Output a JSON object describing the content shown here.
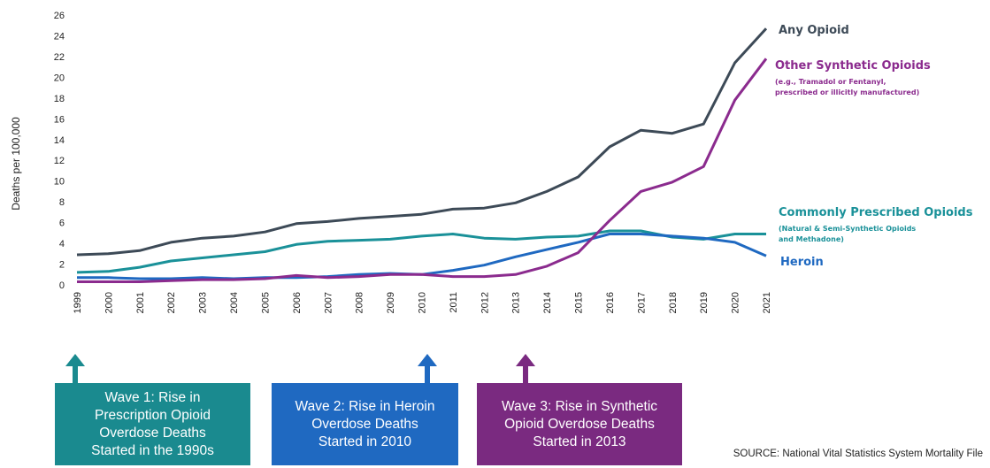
{
  "chart_data": {
    "type": "line",
    "title": "",
    "xlabel": "",
    "ylabel": "Deaths per 100,000",
    "ylim": [
      0,
      26
    ],
    "yticks": [
      0,
      2,
      4,
      6,
      8,
      10,
      12,
      14,
      16,
      18,
      20,
      22,
      24,
      26
    ],
    "x": [
      "1999",
      "2000",
      "2001",
      "2002",
      "2003",
      "2004",
      "2005",
      "2006",
      "2007",
      "2008",
      "2009",
      "2010",
      "2011",
      "2012",
      "2013",
      "2014",
      "2015",
      "2016",
      "2017",
      "2018",
      "2019",
      "2020",
      "2021"
    ],
    "grid": false,
    "series": [
      {
        "name": "Any Opioid",
        "color": "#3d4a57",
        "values": [
          2.9,
          3.0,
          3.3,
          4.1,
          4.5,
          4.7,
          5.1,
          5.9,
          6.1,
          6.4,
          6.6,
          6.8,
          7.3,
          7.4,
          7.9,
          9.0,
          10.4,
          13.3,
          14.9,
          14.6,
          15.5,
          21.4,
          24.7
        ]
      },
      {
        "name": "Other Synthetic Opioids",
        "color": "#8b2b8e",
        "values": [
          0.3,
          0.3,
          0.3,
          0.4,
          0.5,
          0.5,
          0.6,
          0.9,
          0.7,
          0.8,
          1.0,
          1.0,
          0.8,
          0.8,
          1.0,
          1.8,
          3.1,
          6.2,
          9.0,
          9.9,
          11.4,
          17.8,
          21.8
        ]
      },
      {
        "name": "Commonly Prescribed Opioids",
        "color": "#1a9199",
        "values": [
          1.2,
          1.3,
          1.7,
          2.3,
          2.6,
          2.9,
          3.2,
          3.9,
          4.2,
          4.3,
          4.4,
          4.7,
          4.9,
          4.5,
          4.4,
          4.6,
          4.7,
          5.2,
          5.2,
          4.6,
          4.4,
          4.9,
          4.9
        ]
      },
      {
        "name": "Heroin",
        "color": "#1f69c1",
        "values": [
          0.7,
          0.7,
          0.6,
          0.6,
          0.7,
          0.6,
          0.7,
          0.7,
          0.8,
          1.0,
          1.1,
          1.0,
          1.4,
          1.9,
          2.7,
          3.4,
          4.1,
          4.9,
          4.9,
          4.7,
          4.5,
          4.1,
          2.8
        ]
      }
    ],
    "labels": {
      "any": "Any Opioid",
      "synthetic": "Other Synthetic Opioids",
      "synthetic_sub1": "(e.g., Tramadol or Fentanyl,",
      "synthetic_sub2": "prescribed or illicitly manufactured)",
      "prescribed": "Commonly Prescribed Opioids",
      "prescribed_sub1": "(Natural & Semi-Synthetic Opioids",
      "prescribed_sub2": "and Methadone)",
      "heroin": "Heroin"
    }
  },
  "waves": [
    {
      "text": "Wave 1: Rise in\nPrescription Opioid\nOverdose Deaths\nStarted in the 1990s",
      "color": "#1a8a8f",
      "arrow_year": "1999"
    },
    {
      "text": "Wave 2: Rise in Heroin\nOverdose Deaths\nStarted in 2010",
      "color": "#1f69c1",
      "arrow_year": "2010"
    },
    {
      "text": "Wave 3: Rise in Synthetic\nOpioid Overdose Deaths\nStarted in 2013",
      "color": "#7a2a80",
      "arrow_year": "2013"
    }
  ],
  "source": "SOURCE: National Vital Statistics System Mortality File"
}
